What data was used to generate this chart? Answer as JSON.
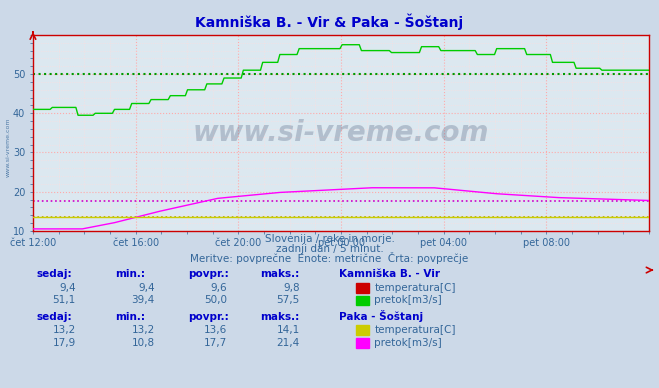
{
  "title": "Kamniška B. - Vir & Paka - Šoštanj",
  "title_color": "#0000cc",
  "bg_color": "#ccd9e8",
  "plot_bg_color": "#dce8f0",
  "grid_color_major": "#ffaaaa",
  "grid_color_minor": "#ffdddd",
  "text_color": "#336699",
  "xtick_labels": [
    "čet 12:00",
    "čet 16:00",
    "čet 20:00",
    "pet 00:00",
    "pet 04:00",
    "pet 08:00"
  ],
  "ylim": [
    10,
    60
  ],
  "yticks": [
    10,
    20,
    30,
    40,
    50
  ],
  "watermark": "www.si-vreme.com",
  "subtitle1": "Slovenija / reke in morje.",
  "subtitle2": "zadnji dan / 5 minut.",
  "subtitle3": "Meritve: povprečne  Enote: metrične  Črta: povprečje",
  "avg_line_vir_pretok": 50.0,
  "avg_line_paka_pretok": 17.7,
  "avg_line_paka_temp": 13.6,
  "color_vir_temp": "#cc0000",
  "color_vir_pretok": "#00cc00",
  "color_paka_temp": "#cccc00",
  "color_paka_pretok": "#ff00ff",
  "avg_color_vir_pretok": "#009900",
  "avg_color_paka_pretok": "#cc00cc",
  "avg_color_paka_temp": "#aaaa00",
  "axis_color": "#cc0000",
  "table_header_color": "#0000cc",
  "table_value_color": "#336699",
  "table_station1": "Kamniška B. - Vir",
  "table_station2": "Paka - Šoštanj",
  "table1": {
    "sedaj": [
      "9,4",
      "51,1"
    ],
    "min": [
      "9,4",
      "39,4"
    ],
    "povpr": [
      "9,6",
      "50,0"
    ],
    "maks": [
      "9,8",
      "57,5"
    ],
    "labels": [
      "temperatura[C]",
      "pretok[m3/s]"
    ],
    "colors": [
      "#cc0000",
      "#00cc00"
    ]
  },
  "table2": {
    "sedaj": [
      "13,2",
      "17,9"
    ],
    "min": [
      "13,2",
      "10,8"
    ],
    "povpr": [
      "13,6",
      "17,7"
    ],
    "maks": [
      "14,1",
      "21,4"
    ],
    "labels": [
      "temperatura[C]",
      "pretok[m3/s]"
    ],
    "colors": [
      "#cccc00",
      "#ff00ff"
    ]
  }
}
